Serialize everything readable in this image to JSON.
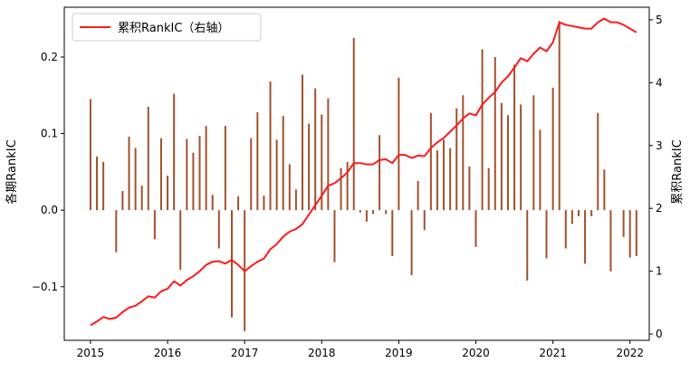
{
  "chart_data": {
    "type": "bar+line",
    "title": "",
    "xlabel": "",
    "ylabel_left": "各期RankIC",
    "ylabel_right": "累积RankIC",
    "x_ticks": [
      "2015",
      "2016",
      "2017",
      "2018",
      "2019",
      "2020",
      "2021",
      "2022"
    ],
    "y_left_ticks": [
      "−0.1",
      "0.0",
      "0.1",
      "0.2"
    ],
    "y_right_ticks": [
      "0",
      "1",
      "2",
      "3",
      "4",
      "5"
    ],
    "ylim_left": [
      -0.17,
      0.265
    ],
    "ylim_right": [
      -0.1,
      5.2
    ],
    "xlim": [
      2014.66,
      2022.25
    ],
    "legend": {
      "position": "top-left",
      "label": "累积RankIC（右轴）"
    },
    "colors": {
      "bars": "#a0522d",
      "line": "#ff1a1a"
    },
    "start": [
      2015,
      1
    ],
    "bars": {
      "name": "各期RankIC",
      "values": [
        0.145,
        0.07,
        0.063,
        0.0,
        -0.055,
        0.025,
        0.096,
        0.081,
        0.032,
        0.135,
        -0.038,
        0.094,
        0.045,
        0.152,
        -0.078,
        0.093,
        0.075,
        0.097,
        0.11,
        0.02,
        -0.05,
        0.11,
        -0.14,
        0.018,
        -0.158,
        0.094,
        0.128,
        0.019,
        0.168,
        0.092,
        0.123,
        0.06,
        0.027,
        0.177,
        0.113,
        0.159,
        0.125,
        0.146,
        -0.068,
        0.055,
        0.063,
        0.225,
        -0.003,
        -0.015,
        -0.005,
        0.098,
        -0.005,
        -0.06,
        0.173,
        0.0,
        -0.085,
        0.038,
        -0.026,
        0.127,
        0.078,
        0.092,
        0.081,
        0.133,
        0.15,
        0.057,
        -0.048,
        0.21,
        0.055,
        0.2,
        0.14,
        0.124,
        0.19,
        0.138,
        -0.092,
        0.15,
        0.105,
        -0.063,
        0.16,
        0.247,
        -0.05,
        -0.018,
        -0.008,
        -0.07,
        -0.008,
        0.127,
        0.053,
        -0.08,
        0.0,
        -0.035,
        -0.062,
        -0.06
      ]
    },
    "line": {
      "name": "累积RankIC（右轴）",
      "values": [
        0.14,
        0.2,
        0.27,
        0.24,
        0.26,
        0.35,
        0.42,
        0.45,
        0.52,
        0.6,
        0.58,
        0.68,
        0.72,
        0.84,
        0.77,
        0.86,
        0.92,
        1.0,
        1.1,
        1.15,
        1.16,
        1.12,
        1.18,
        1.1,
        1.0,
        1.08,
        1.15,
        1.2,
        1.35,
        1.43,
        1.55,
        1.63,
        1.67,
        1.75,
        1.9,
        2.05,
        2.2,
        2.36,
        2.4,
        2.48,
        2.57,
        2.72,
        2.72,
        2.7,
        2.7,
        2.77,
        2.78,
        2.72,
        2.85,
        2.85,
        2.8,
        2.84,
        2.83,
        2.96,
        3.05,
        3.12,
        3.22,
        3.32,
        3.43,
        3.51,
        3.48,
        3.65,
        3.76,
        3.85,
        4.0,
        4.1,
        4.24,
        4.39,
        4.34,
        4.46,
        4.56,
        4.5,
        4.64,
        4.96,
        4.92,
        4.9,
        4.88,
        4.86,
        4.86,
        4.96,
        5.02,
        4.96,
        4.96,
        4.92,
        4.86,
        4.8
      ]
    }
  }
}
